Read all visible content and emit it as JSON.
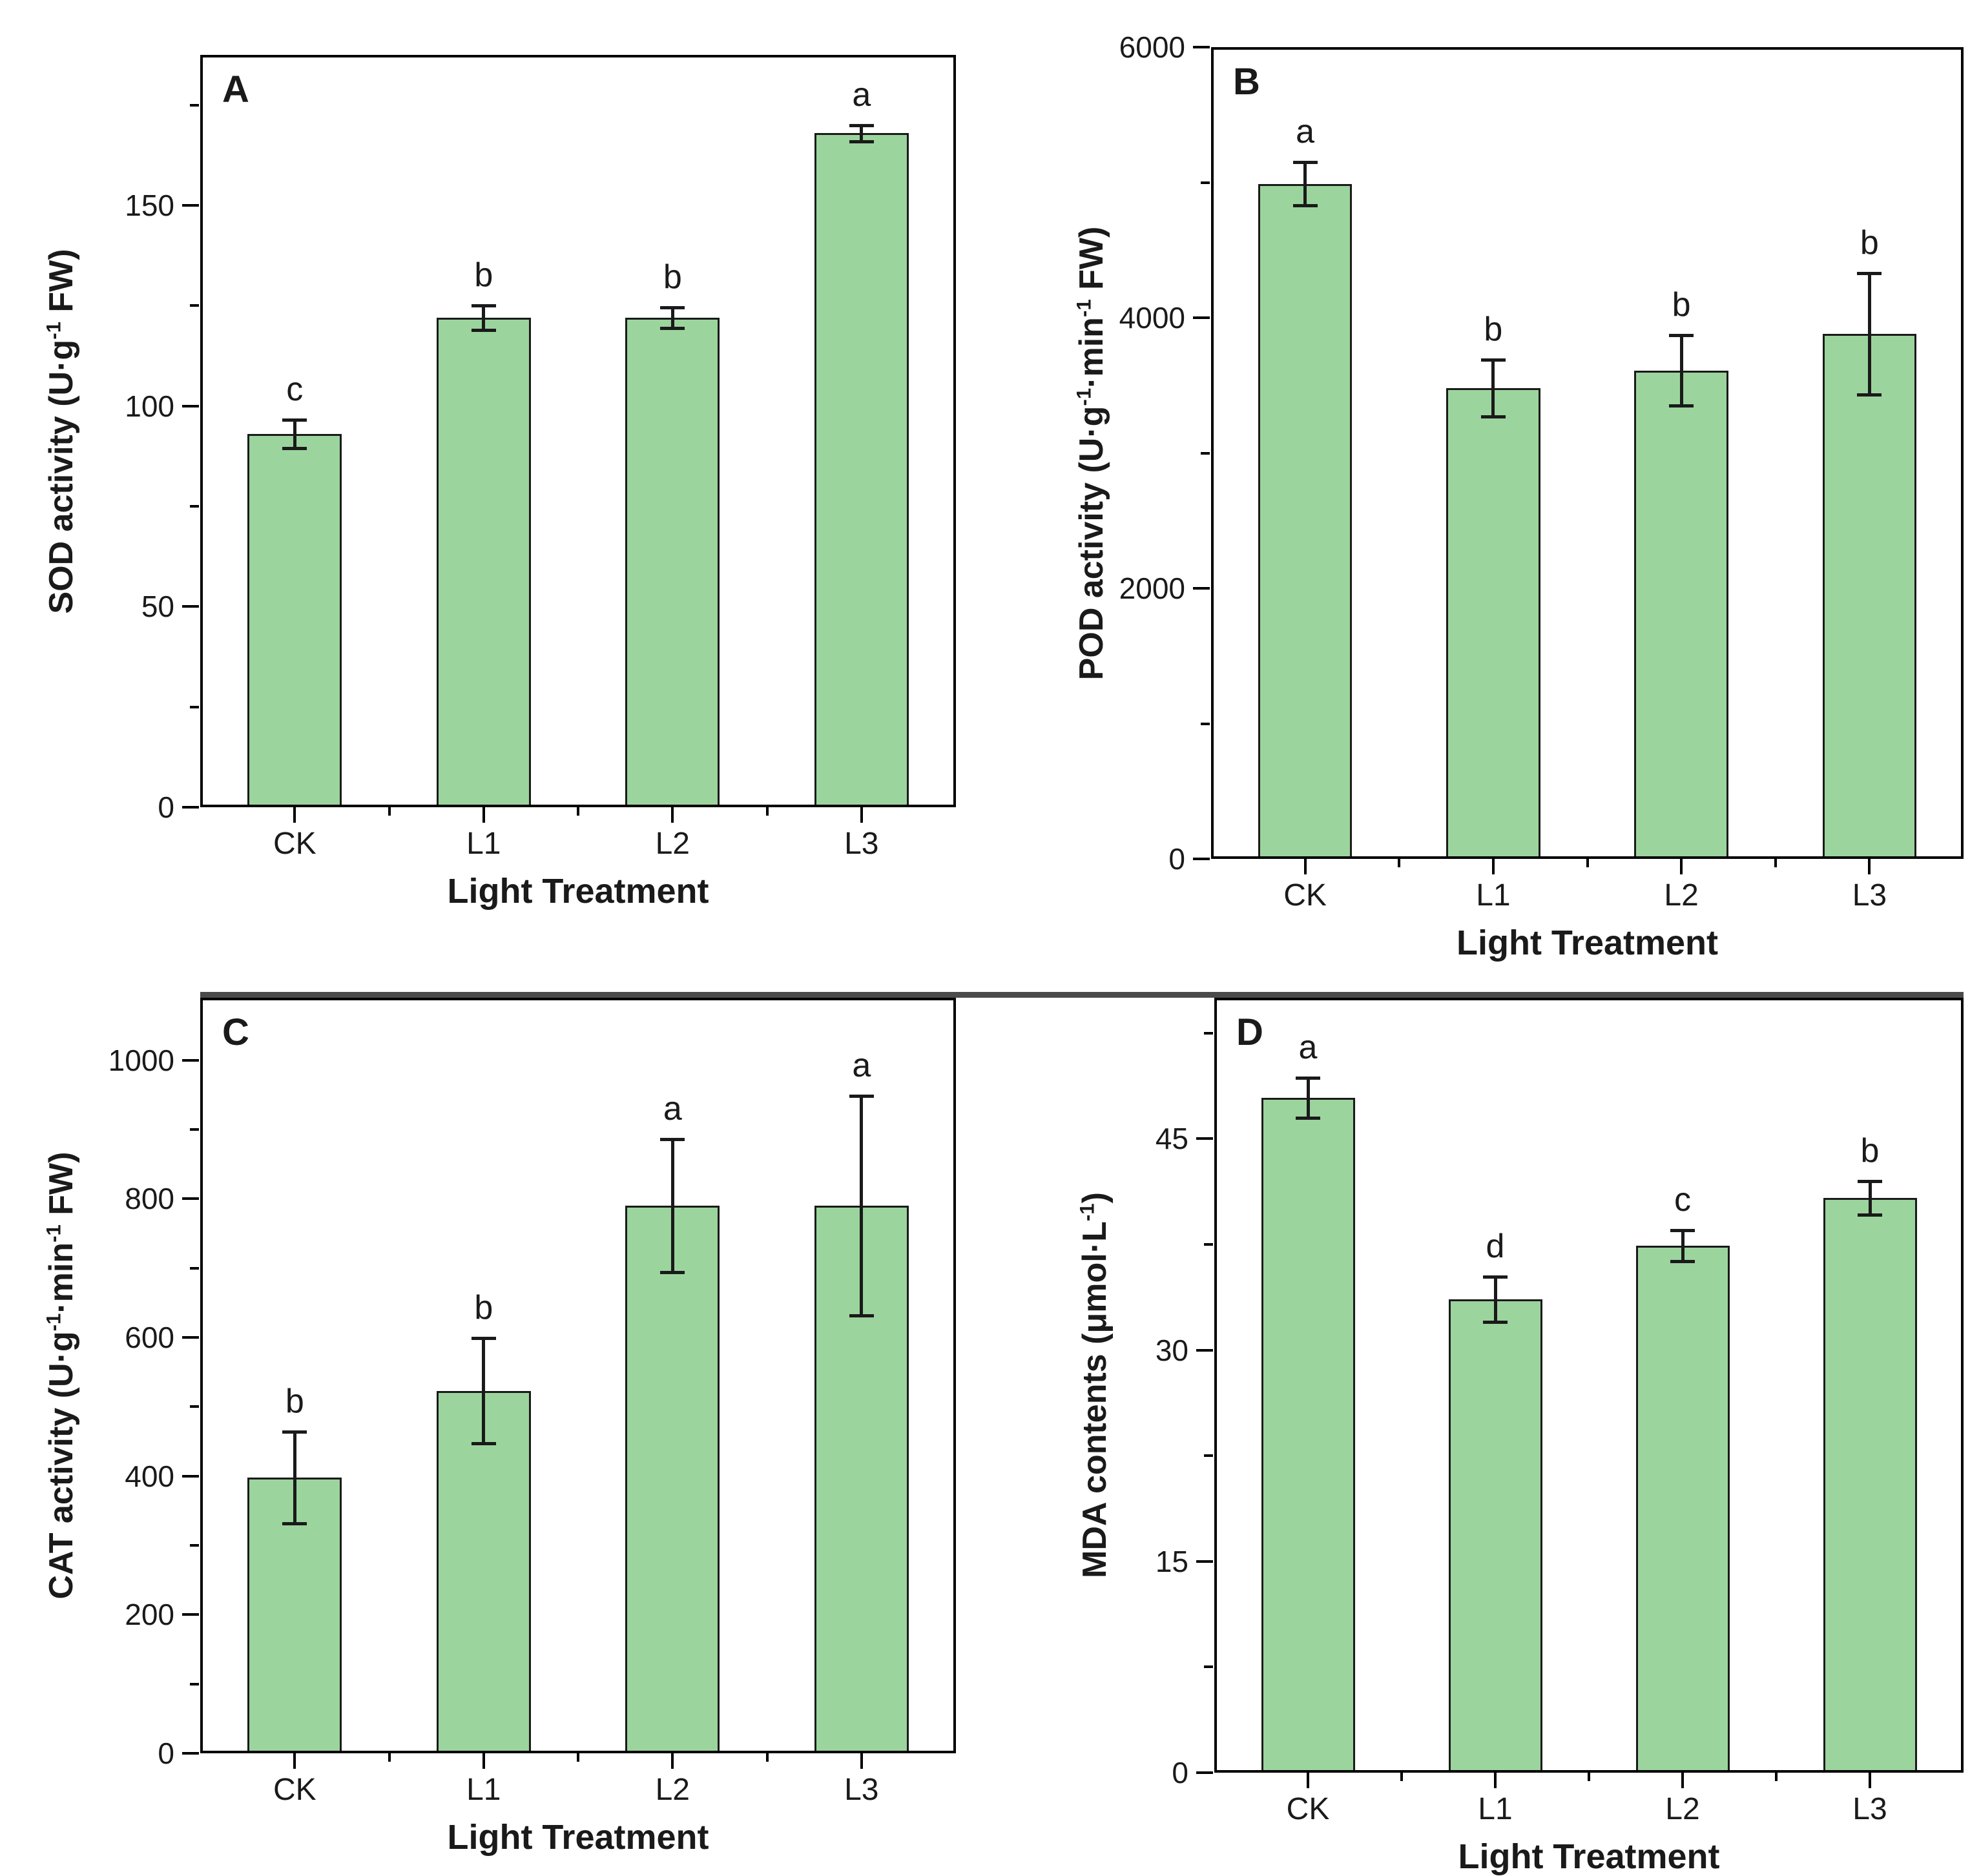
{
  "figure": {
    "background": "#ffffff",
    "bar_fill": "#9cd49d",
    "bar_edge": "#1a1a1a",
    "axis_color": "#000000",
    "text_color": "#1a1a1a",
    "divider_color": "#4b4b4b"
  },
  "chart_data": [
    {
      "panel_label": "A",
      "type": "bar",
      "categories": [
        "CK",
        "L1",
        "L2",
        "L3"
      ],
      "values": [
        93,
        122,
        122,
        168
      ],
      "errors": [
        3.5,
        3,
        2.5,
        2
      ],
      "sig_letters": [
        "c",
        "b",
        "b",
        "a"
      ],
      "ylabel": "SOD activity (U·g^{-1} FW)",
      "xlabel": "Light Treatment",
      "ylim": [
        0,
        187.5
      ],
      "yticks": [
        0,
        50,
        100,
        150
      ],
      "yticks_minor": [
        25,
        75,
        125,
        175
      ],
      "grid": false,
      "legend": null
    },
    {
      "panel_label": "B",
      "type": "bar",
      "categories": [
        "CK",
        "L1",
        "L2",
        "L3"
      ],
      "values": [
        4990,
        3480,
        3610,
        3880
      ],
      "errors": [
        160,
        210,
        260,
        450
      ],
      "sig_letters": [
        "a",
        "b",
        "b",
        "b"
      ],
      "ylabel": "POD activity (U·g^{-1}·min^{-1} FW)",
      "xlabel": "Light Treatment",
      "ylim": [
        0,
        6000
      ],
      "yticks": [
        0,
        2000,
        4000,
        6000
      ],
      "yticks_minor": [
        1000,
        3000,
        5000
      ],
      "grid": false,
      "legend": null
    },
    {
      "panel_label": "C",
      "type": "bar",
      "categories": [
        "CK",
        "L1",
        "L2",
        "L3"
      ],
      "values": [
        398,
        523,
        790,
        790
      ],
      "errors": [
        66,
        76,
        96,
        158
      ],
      "sig_letters": [
        "b",
        "b",
        "a",
        "a"
      ],
      "ylabel": "CAT activity (U·g^{-1}·min^{-1} FW)",
      "xlabel": "Light Treatment",
      "ylim": [
        0,
        1090
      ],
      "yticks": [
        0,
        200,
        400,
        600,
        800,
        1000
      ],
      "yticks_minor": [
        100,
        300,
        500,
        700,
        900
      ],
      "grid": false,
      "legend": null
    },
    {
      "panel_label": "D",
      "type": "bar",
      "categories": [
        "CK",
        "L1",
        "L2",
        "L3"
      ],
      "values": [
        47.9,
        33.6,
        37.4,
        40.8
      ],
      "errors": [
        1.4,
        1.6,
        1.1,
        1.2
      ],
      "sig_letters": [
        "a",
        "d",
        "c",
        "b"
      ],
      "ylabel": "MDA contents (μmol·L^{-1})",
      "xlabel": "Light Treatment",
      "ylim": [
        0,
        55
      ],
      "yticks": [
        0,
        15,
        30,
        45
      ],
      "yticks_minor": [
        7.5,
        22.5,
        37.5,
        52.5
      ],
      "grid": false,
      "legend": null
    }
  ]
}
